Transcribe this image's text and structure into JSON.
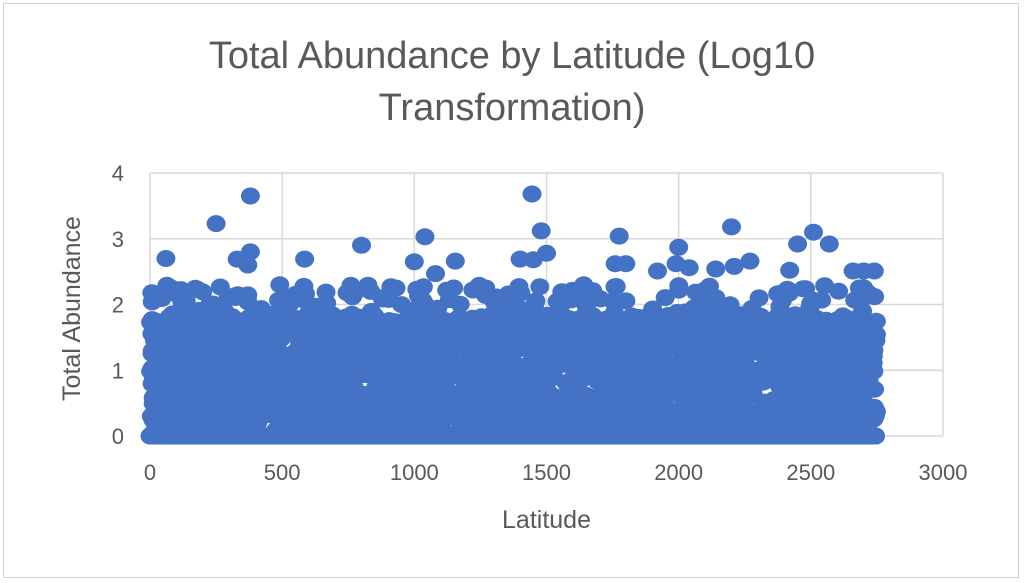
{
  "chart_data": {
    "type": "scatter",
    "title_line1": "Total Abundance by Latitude (Log10",
    "title_line2": "Transformation)",
    "xlabel": "Latitude",
    "ylabel": "Total Abundance",
    "xlim": [
      0,
      3000
    ],
    "ylim": [
      0,
      4
    ],
    "xticks": [
      0,
      500,
      1000,
      1500,
      2000,
      2500,
      3000
    ],
    "yticks": [
      0,
      1,
      2,
      3,
      4
    ],
    "grid": true,
    "legend": "none",
    "marker_color": "#4472C4",
    "series": [
      {
        "x_range": [
          0,
          2750
        ],
        "y_range": [
          0,
          3.7
        ],
        "note_points": [
          [
            380,
            3.65
          ],
          [
            1445,
            3.68
          ],
          [
            250,
            3.23
          ],
          [
            1480,
            3.12
          ],
          [
            2200,
            3.18
          ],
          [
            2510,
            3.1
          ],
          [
            2570,
            2.92
          ],
          [
            1775,
            3.04
          ],
          [
            1040,
            3.03
          ],
          [
            2450,
            2.92
          ],
          [
            2000,
            2.87
          ],
          [
            800,
            2.9
          ],
          [
            380,
            2.8
          ],
          [
            60,
            2.7
          ],
          [
            330,
            2.69
          ],
          [
            585,
            2.69
          ],
          [
            1400,
            2.69
          ],
          [
            1155,
            2.66
          ],
          [
            2270,
            2.66
          ],
          [
            1990,
            2.62
          ],
          [
            1450,
            2.68
          ],
          [
            1760,
            2.62
          ],
          [
            1800,
            2.62
          ],
          [
            2210,
            2.58
          ],
          [
            2040,
            2.56
          ],
          [
            2660,
            2.51
          ],
          [
            1920,
            2.51
          ],
          [
            2700,
            2.51
          ],
          [
            2740,
            2.51
          ],
          [
            2140,
            2.54
          ],
          [
            1080,
            2.47
          ],
          [
            2420,
            2.52
          ],
          [
            1500,
            2.78
          ],
          [
            370,
            2.6
          ],
          [
            1000,
            2.65
          ]
        ]
      }
    ]
  }
}
